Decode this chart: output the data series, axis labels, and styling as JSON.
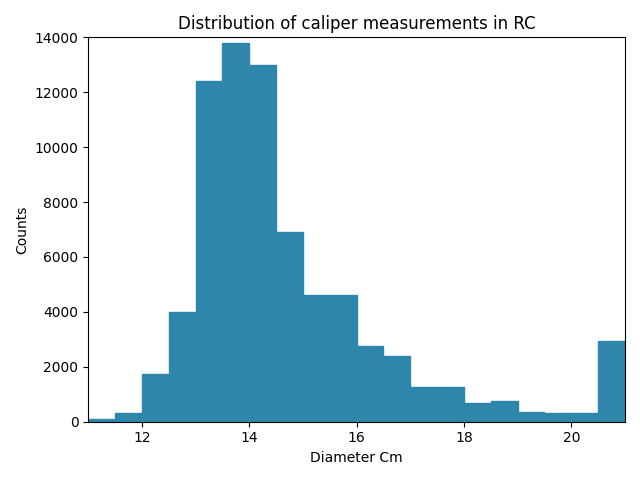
{
  "title": "Distribution of caliper measurements in RC",
  "xlabel": "Diameter Cm",
  "ylabel": "Counts",
  "bar_color": "#2e86ab",
  "bar_edgecolor": "#2e86ab",
  "ylim": [
    0,
    14000
  ],
  "xlim": [
    11.0,
    21.0
  ],
  "bin_edges": [
    11.0,
    11.5,
    12.0,
    12.5,
    13.0,
    13.5,
    14.0,
    14.5,
    15.0,
    15.5,
    16.0,
    16.5,
    17.0,
    17.5,
    18.0,
    18.5,
    19.0,
    19.5,
    20.0,
    20.5,
    21.0
  ],
  "counts": [
    100,
    300,
    1750,
    4000,
    12400,
    13800,
    13000,
    6900,
    4600,
    4600,
    2750,
    2400,
    1250,
    1250,
    700,
    750,
    350,
    300,
    300,
    2950
  ]
}
